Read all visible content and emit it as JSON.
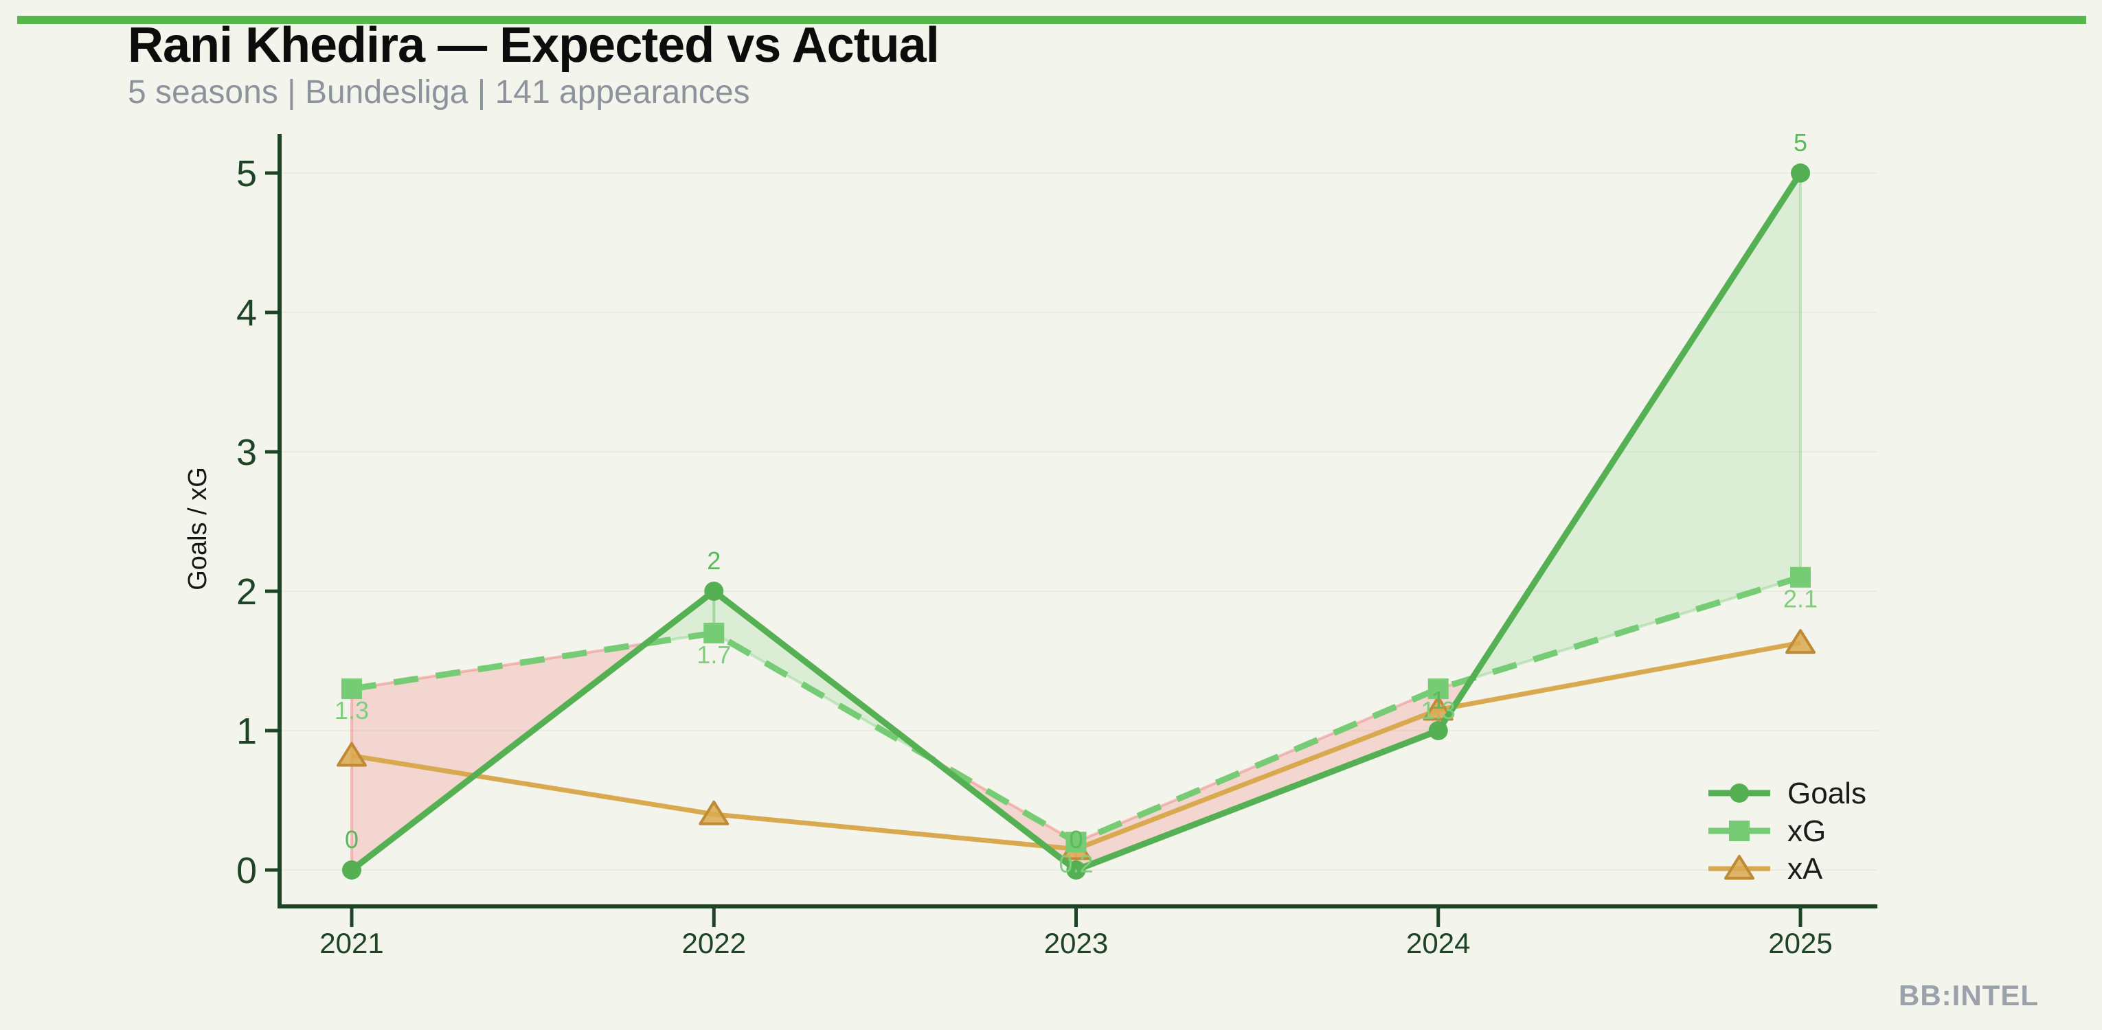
{
  "header": {
    "title": "Rani Khedira — Expected vs Actual",
    "subtitle": "5 seasons | Bundesliga | 141 appearances"
  },
  "watermark": "BB:INTEL",
  "colors": {
    "background": "#f3f4ec",
    "top_bar": "#56b84a",
    "axis": "#1e4427",
    "tick_label": "#1e4427",
    "title": "#0c0c0c",
    "subtitle": "#8d939d",
    "watermark": "#9aa1ab",
    "ylabel_text": "#161616",
    "legend_text": "#1b1b1b",
    "goals": "#55b054",
    "goals_label": "#5cb85c",
    "xg": "#76cc74",
    "xg_label": "#7fce7d",
    "xa": "#d9a950",
    "xa_fill": "rgba(217,169,80,0.85)",
    "xa_edge": "#c08a35",
    "fill_over": "rgba(118,204,116,0.18)",
    "fill_over_edge": "rgba(118,204,116,0.35)",
    "fill_under": "rgba(239,125,120,0.25)",
    "fill_under_edge": "rgba(239,125,120,0.45)",
    "grid": "#eaece2"
  },
  "chart_data": {
    "type": "line",
    "title": "Rani Khedira — Expected vs Actual",
    "subtitle": "5 seasons | Bundesliga | 141 appearances",
    "xlabel": "",
    "ylabel": "Goals / xG",
    "categories": [
      "2021",
      "2022",
      "2023",
      "2024",
      "2025"
    ],
    "yticks": [
      0,
      1,
      2,
      3,
      4,
      5
    ],
    "ylim": [
      -0.26,
      5.28
    ],
    "grid": "faint horizontal gridlines at integer values",
    "legend_position": "inside lower right",
    "legend_entries": [
      "Goals",
      "xG",
      "xA"
    ],
    "series": [
      {
        "name": "Goals",
        "values": [
          0,
          2,
          0,
          1,
          5
        ],
        "point_labels": [
          "0",
          "2",
          "0",
          "1",
          "5"
        ],
        "marker": "circle",
        "line_style": "solid"
      },
      {
        "name": "xG",
        "values": [
          1.3,
          1.7,
          0.2,
          1.3,
          2.1
        ],
        "point_labels": [
          "1.3",
          "1.7",
          "0.2",
          "1.3",
          "2.1"
        ],
        "marker": "square",
        "line_style": "dashed"
      },
      {
        "name": "xA",
        "values": [
          0.82,
          0.4,
          0.15,
          1.15,
          1.63
        ],
        "point_labels": null,
        "marker": "triangle",
        "line_style": "solid"
      }
    ],
    "fill_between": {
      "series_pair": [
        "Goals",
        "xG"
      ],
      "actual_above_expected": "light green",
      "expected_above_actual": "light pink"
    }
  }
}
